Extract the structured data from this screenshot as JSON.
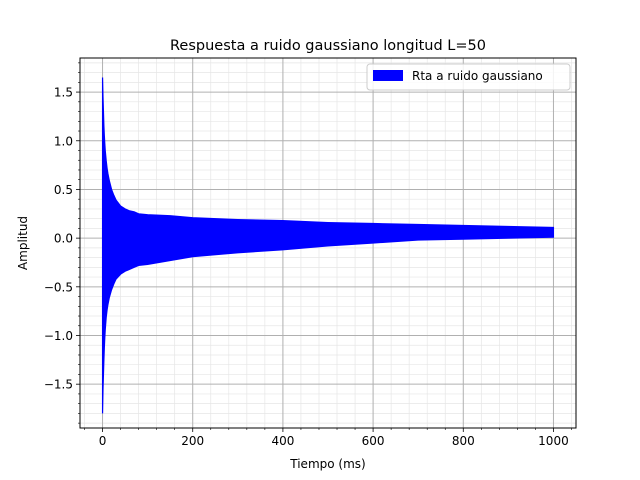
{
  "chart_data": {
    "type": "area",
    "title": "Respuesta a ruido gaussiano longitud L=50",
    "xlabel": "Tiempo (ms)",
    "ylabel": "Amplitud",
    "xlim": [
      -50,
      1050
    ],
    "ylim": [
      -1.95,
      1.85
    ],
    "xticks": [
      0,
      200,
      400,
      600,
      800,
      1000
    ],
    "yticks": [
      -1.5,
      -1.0,
      -0.5,
      0.0,
      0.5,
      1.0,
      1.5
    ],
    "xtick_labels": [
      "0",
      "200",
      "400",
      "600",
      "800",
      "1000"
    ],
    "ytick_labels": [
      "−1.5",
      "−1.0",
      "−0.5",
      "0.0",
      "0.5",
      "1.0",
      "1.5"
    ],
    "grid": "major and minor",
    "legend_position": "top-right",
    "series": [
      {
        "name": "Rta a ruido gaussiano",
        "color": "#0000ff",
        "x": [
          0,
          1,
          2,
          3,
          4,
          5,
          6,
          8,
          10,
          12,
          15,
          20,
          25,
          30,
          40,
          50,
          60,
          70,
          80,
          100,
          150,
          200,
          300,
          400,
          500,
          600,
          700,
          800,
          900,
          1000
        ],
        "upper": [
          1.65,
          1.45,
          1.3,
          1.15,
          1.05,
          0.97,
          0.9,
          0.8,
          0.72,
          0.66,
          0.59,
          0.5,
          0.44,
          0.39,
          0.33,
          0.3,
          0.28,
          0.27,
          0.25,
          0.24,
          0.23,
          0.21,
          0.19,
          0.18,
          0.16,
          0.15,
          0.14,
          0.13,
          0.12,
          0.11
        ],
        "lower": [
          -1.8,
          -1.55,
          -1.4,
          -1.25,
          -1.12,
          -1.02,
          -0.94,
          -0.82,
          -0.74,
          -0.68,
          -0.61,
          -0.53,
          -0.47,
          -0.42,
          -0.37,
          -0.34,
          -0.32,
          -0.3,
          -0.28,
          -0.27,
          -0.23,
          -0.19,
          -0.15,
          -0.12,
          -0.08,
          -0.05,
          -0.02,
          -0.01,
          0.0,
          0.01
        ]
      }
    ]
  }
}
